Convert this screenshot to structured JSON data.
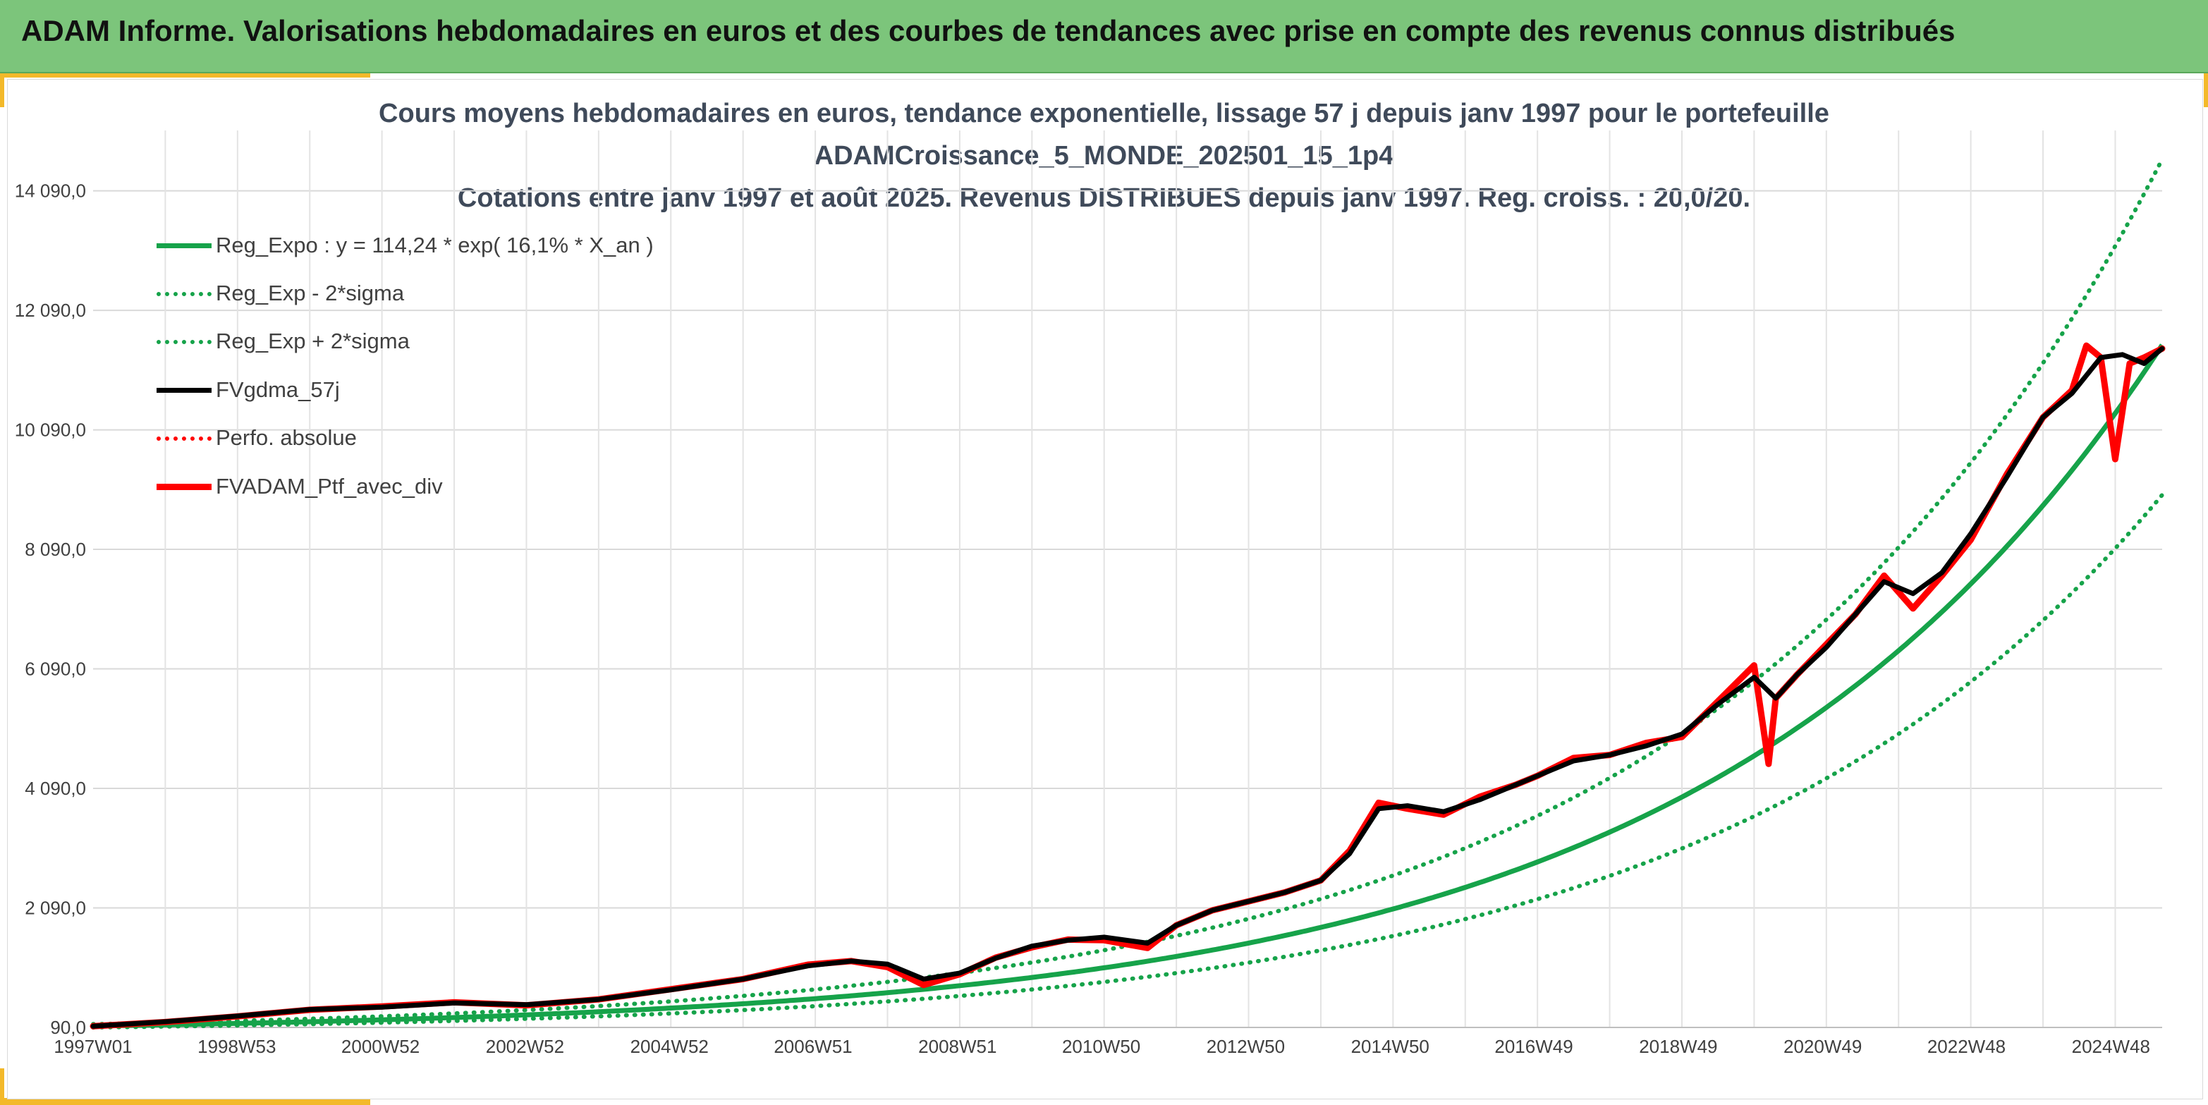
{
  "header": {
    "title": "ADAM Informe. Valorisations hebdomadaires en euros et des courbes de tendances avec prise en compte des revenus connus distribués"
  },
  "chart_data": {
    "type": "line",
    "title_lines": [
      "Cours moyens hebdomadaires en euros, tendance exponentielle, lissage 57 j depuis janv 1997 pour le portefeuille",
      "ADAMCroissance_5_MONDE_202501_15_1p4",
      "Cotations entre janv 1997 et août 2025. Revenus DISTRIBUES depuis janv 1997. Reg. croiss. : 20,0/20."
    ],
    "x_tick_labels": [
      "1997W01",
      "1998W53",
      "2000W52",
      "2002W52",
      "2004W52",
      "2006W51",
      "2008W51",
      "2010W50",
      "2012W50",
      "2014W50",
      "2016W49",
      "2018W49",
      "2020W49",
      "2022W48",
      "2024W48"
    ],
    "x_range_years": [
      1997.0,
      2025.65
    ],
    "y_ticks": [
      90,
      2090,
      4090,
      6090,
      8090,
      10090,
      12090,
      14090
    ],
    "y_tick_labels": [
      "90,0",
      "2 090,0",
      "4 090,0",
      "6 090,0",
      "8 090,0",
      "10 090,0",
      "12 090,0",
      "14 090,0"
    ],
    "ylim": [
      90,
      15100
    ],
    "grid": true,
    "legend_position": "top-left",
    "regression": {
      "a": 114.24,
      "rate_percent_per_year": 16.1,
      "start_year": 1997.0,
      "sigma_band_multiplier_low": 0.782,
      "sigma_band_multiplier_high": 1.27
    },
    "series": [
      {
        "name": "Reg_Expo : y = 114,24 * exp( 16,1% *  X_an )",
        "color": "#16a34a",
        "style": "solid",
        "width": 7
      },
      {
        "name": "Reg_Exp - 2*sigma",
        "color": "#16a34a",
        "style": "dotted",
        "width": 6
      },
      {
        "name": "Reg_Exp + 2*sigma",
        "color": "#16a34a",
        "style": "dotted",
        "width": 6
      },
      {
        "name": "FVgdma_57j",
        "color": "#000000",
        "style": "solid",
        "width": 7,
        "x": [
          1997.0,
          1998.0,
          1999.0,
          2000.0,
          2001.0,
          2002.0,
          2003.0,
          2004.0,
          2005.0,
          2006.0,
          2006.9,
          2007.5,
          2008.0,
          2008.5,
          2009.0,
          2009.5,
          2010.0,
          2010.5,
          2011.0,
          2011.6,
          2012.0,
          2012.5,
          2013.0,
          2013.5,
          2014.0,
          2014.4,
          2014.8,
          2015.2,
          2015.7,
          2016.2,
          2016.7,
          2017.0,
          2017.5,
          2018.0,
          2018.5,
          2019.0,
          2019.5,
          2020.0,
          2020.3,
          2020.6,
          2021.0,
          2021.4,
          2021.8,
          2022.2,
          2022.6,
          2023.0,
          2023.5,
          2024.0,
          2024.4,
          2024.8,
          2025.1,
          2025.4,
          2025.65
        ],
        "y": [
          110,
          185,
          280,
          390,
          430,
          500,
          470,
          560,
          720,
          900,
          1120,
          1200,
          1150,
          900,
          1000,
          1250,
          1450,
          1550,
          1600,
          1500,
          1800,
          2050,
          2200,
          2350,
          2550,
          3000,
          3750,
          3800,
          3700,
          3900,
          4150,
          4300,
          4550,
          4650,
          4800,
          5000,
          5500,
          5950,
          5600,
          6000,
          6450,
          7000,
          7550,
          7350,
          7700,
          8350,
          9300,
          10300,
          10700,
          11300,
          11350,
          11200,
          11450
        ]
      },
      {
        "name": "Perfo. absolue",
        "color": "#ff0000",
        "style": "dotted",
        "width": 6
      },
      {
        "name": "FVADAM_Ptf_avec_div",
        "color": "#ff0000",
        "style": "solid",
        "width": 9,
        "x": [
          1997.0,
          1998.0,
          1999.0,
          2000.0,
          2001.0,
          2002.0,
          2003.0,
          2004.0,
          2005.0,
          2006.0,
          2006.9,
          2007.5,
          2008.0,
          2008.5,
          2009.0,
          2009.5,
          2010.0,
          2010.5,
          2011.0,
          2011.6,
          2012.0,
          2012.5,
          2013.0,
          2013.5,
          2014.0,
          2014.4,
          2014.8,
          2015.2,
          2015.7,
          2016.2,
          2016.7,
          2017.0,
          2017.5,
          2018.0,
          2018.5,
          2019.0,
          2019.5,
          2020.0,
          2020.2,
          2020.3,
          2020.6,
          2021.0,
          2021.4,
          2021.8,
          2022.2,
          2022.6,
          2023.0,
          2023.5,
          2024.0,
          2024.4,
          2024.6,
          2024.8,
          2025.0,
          2025.2,
          2025.4,
          2025.65
        ],
        "y": [
          110,
          180,
          275,
          385,
          440,
          510,
          460,
          560,
          730,
          900,
          1140,
          1200,
          1100,
          800,
          980,
          1260,
          1430,
          1560,
          1550,
          1420,
          1800,
          2050,
          2200,
          2350,
          2550,
          3050,
          3850,
          3750,
          3650,
          3950,
          4150,
          4300,
          4600,
          4650,
          4850,
          4950,
          5550,
          6150,
          4500,
          5600,
          6000,
          6500,
          7000,
          7650,
          7100,
          7650,
          8250,
          9350,
          10300,
          10750,
          11500,
          11300,
          9600,
          11200,
          11300,
          11450
        ]
      }
    ]
  }
}
